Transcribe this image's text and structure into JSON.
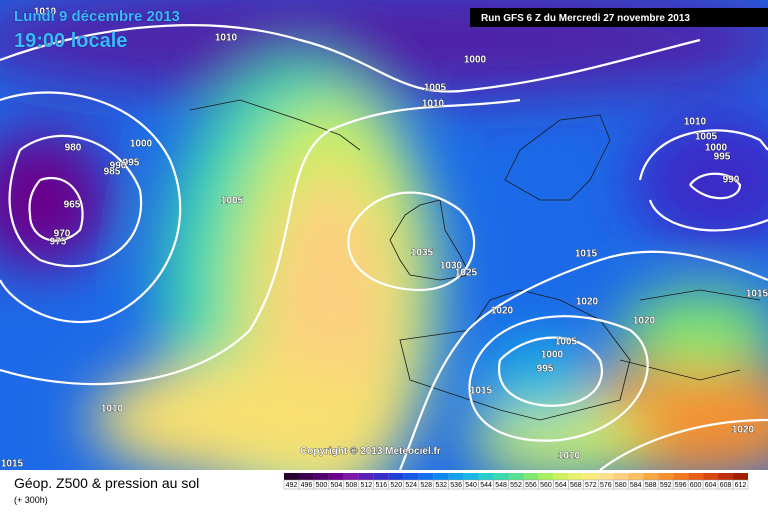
{
  "header": {
    "date": "Lundi 9 décembre 2013",
    "time": "19:00 locale",
    "run": "Run GFS 6 Z du Mercredi 27 novembre 2013"
  },
  "copyright": "Copyright © 2013 Meteociel.fr",
  "footer": {
    "title": "Géop. Z500 & pression au sol",
    "lead": "(+ 300h)"
  },
  "isobar_labels": [
    1010,
    1010,
    1000,
    1005,
    1010,
    1000,
    980,
    995,
    985,
    990,
    965,
    970,
    975,
    1005,
    1035,
    1030,
    1025,
    1020,
    1015,
    1020,
    1020,
    1005,
    1000,
    995,
    1015,
    1010,
    1010,
    1005,
    1000,
    995,
    990,
    1015,
    1010,
    1020,
    1015
  ],
  "legend": {
    "values": [
      492,
      496,
      500,
      504,
      508,
      512,
      516,
      520,
      524,
      528,
      532,
      536,
      540,
      544,
      548,
      552,
      556,
      560,
      564,
      568,
      572,
      576,
      580,
      584,
      588,
      592,
      596,
      600,
      604,
      608,
      612
    ],
    "colors": [
      "#2a0033",
      "#3d0050",
      "#52006e",
      "#6a008c",
      "#7a1aa6",
      "#5a20b8",
      "#3a2cc8",
      "#2040d8",
      "#1858e8",
      "#1070f0",
      "#0a88f0",
      "#10a0ec",
      "#1ab8e0",
      "#28cccc",
      "#3cd8b0",
      "#58e090",
      "#80e870",
      "#a8f060",
      "#ccf060",
      "#e8f070",
      "#f8ec80",
      "#fce090",
      "#fcd080",
      "#fcc060",
      "#f8a840",
      "#f49030",
      "#f07820",
      "#e86018",
      "#d84810",
      "#c03008",
      "#a02000"
    ]
  }
}
